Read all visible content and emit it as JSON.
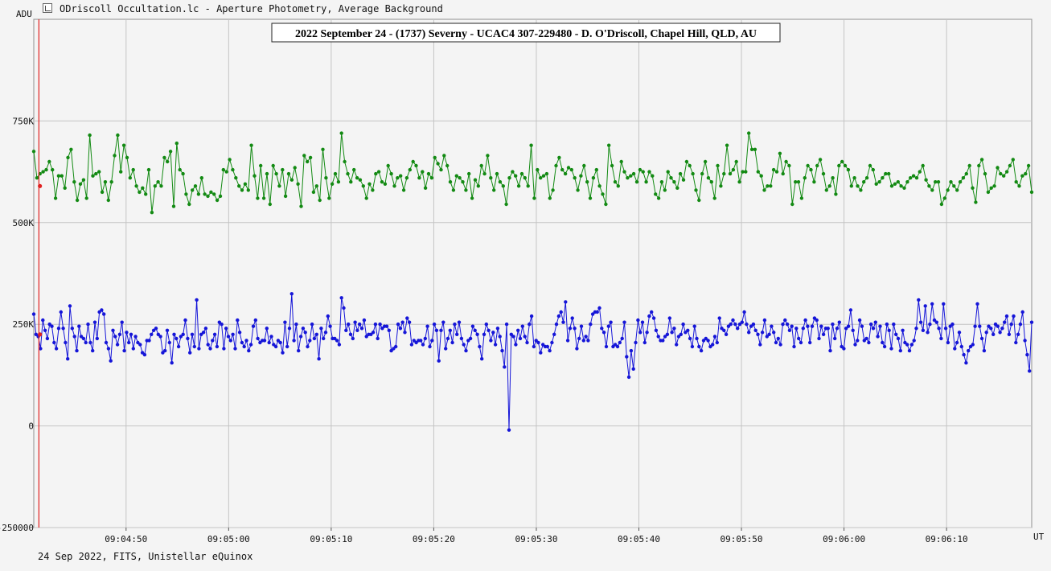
{
  "window": {
    "title": "ODriscoll Occultation.lc - Aperture Photometry, Average Background",
    "icon": "lightcurve-app-icon"
  },
  "footer": {
    "note": "24 Sep 2022, FITS, Unistellar eQuinox"
  },
  "chart_data": {
    "type": "line",
    "title": "2022 September 24 - (1737) Severny - UCAC4 307-229480 - D. O'Driscoll, Chapel Hill, QLD, AU",
    "ylabel": "ADU",
    "xlabel": "UT",
    "ylim": [
      -250000,
      1000000
    ],
    "xlim": [
      "09:04:41.0",
      "09:06:18.3"
    ],
    "y_ticks": [
      {
        "value": 750000,
        "label": "750K"
      },
      {
        "value": 500000,
        "label": "500K"
      },
      {
        "value": 250000,
        "label": "250K"
      },
      {
        "value": 0,
        "label": "0"
      },
      {
        "value": -250000,
        "label": "-250000"
      }
    ],
    "x_ticks": [
      "09:04:50",
      "09:05:00",
      "09:05:10",
      "09:05:20",
      "09:05:30",
      "09:05:40",
      "09:05:50",
      "09:06:00",
      "09:06:10"
    ],
    "grid": true,
    "cursor_time": "09:04:41.5",
    "cursor_color": "#e02020",
    "series": [
      {
        "color": "#138a13",
        "t_start": "09:04:41.0",
        "t_end": "09:06:18.3",
        "values": [
          675000,
          610000,
          620000,
          625000,
          630000,
          650000,
          630000,
          560000,
          615000,
          615000,
          585000,
          660000,
          680000,
          600000,
          555000,
          595000,
          605000,
          560000,
          715000,
          615000,
          620000,
          625000,
          575000,
          600000,
          555000,
          600000,
          665000,
          715000,
          625000,
          690000,
          660000,
          610000,
          630000,
          590000,
          575000,
          585000,
          570000,
          630000,
          525000,
          590000,
          600000,
          590000,
          660000,
          650000,
          675000,
          540000,
          695000,
          630000,
          620000,
          570000,
          545000,
          580000,
          590000,
          570000,
          610000,
          570000,
          565000,
          575000,
          570000,
          555000,
          565000,
          630000,
          625000,
          655000,
          630000,
          610000,
          590000,
          580000,
          595000,
          580000,
          690000,
          615000,
          560000,
          640000,
          560000,
          620000,
          545000,
          640000,
          620000,
          590000,
          630000,
          565000,
          620000,
          605000,
          635000,
          595000,
          540000,
          665000,
          650000,
          660000,
          575000,
          590000,
          555000,
          680000,
          610000,
          560000,
          595000,
          620000,
          600000,
          720000,
          650000,
          620000,
          600000,
          630000,
          610000,
          605000,
          590000,
          560000,
          595000,
          580000,
          620000,
          625000,
          600000,
          595000,
          640000,
          620000,
          590000,
          610000,
          615000,
          580000,
          610000,
          630000,
          650000,
          640000,
          610000,
          625000,
          585000,
          620000,
          610000,
          660000,
          645000,
          630000,
          665000,
          640000,
          600000,
          580000,
          615000,
          610000,
          600000,
          580000,
          620000,
          560000,
          605000,
          590000,
          640000,
          620000,
          665000,
          610000,
          580000,
          620000,
          600000,
          590000,
          545000,
          610000,
          625000,
          615000,
          590000,
          620000,
          610000,
          590000,
          690000,
          560000,
          630000,
          610000,
          615000,
          620000,
          560000,
          580000,
          640000,
          660000,
          630000,
          620000,
          635000,
          630000,
          610000,
          580000,
          615000,
          640000,
          600000,
          560000,
          610000,
          630000,
          590000,
          570000,
          545000,
          690000,
          640000,
          600000,
          590000,
          650000,
          625000,
          610000,
          615000,
          620000,
          600000,
          630000,
          625000,
          600000,
          625000,
          615000,
          570000,
          560000,
          600000,
          580000,
          625000,
          610000,
          600000,
          585000,
          620000,
          605000,
          650000,
          640000,
          620000,
          580000,
          555000,
          620000,
          650000,
          610000,
          600000,
          560000,
          640000,
          590000,
          620000,
          690000,
          620000,
          630000,
          650000,
          600000,
          625000,
          625000,
          720000,
          680000,
          680000,
          625000,
          615000,
          580000,
          590000,
          590000,
          630000,
          625000,
          670000,
          620000,
          650000,
          640000,
          545000,
          600000,
          600000,
          560000,
          610000,
          640000,
          630000,
          600000,
          640000,
          655000,
          620000,
          580000,
          590000,
          610000,
          570000,
          640000,
          650000,
          640000,
          630000,
          590000,
          610000,
          590000,
          580000,
          600000,
          610000,
          640000,
          630000,
          595000,
          600000,
          610000,
          620000,
          620000,
          590000,
          595000,
          600000,
          590000,
          585000,
          600000,
          610000,
          615000,
          610000,
          625000,
          640000,
          605000,
          590000,
          580000,
          600000,
          600000,
          545000,
          560000,
          580000,
          600000,
          590000,
          580000,
          600000,
          610000,
          620000,
          640000,
          585000,
          550000,
          640000,
          655000,
          620000,
          575000,
          585000,
          590000,
          635000,
          620000,
          615000,
          625000,
          640000,
          655000,
          600000,
          590000,
          615000,
          620000,
          640000,
          575000
        ]
      },
      {
        "color": "#1515d8",
        "t_start": "09:04:41.0",
        "t_end": "09:06:18.3",
        "values": [
          275000,
          225000,
          220000,
          190000,
          260000,
          235000,
          215000,
          250000,
          245000,
          205000,
          190000,
          240000,
          280000,
          240000,
          205000,
          165000,
          295000,
          240000,
          220000,
          185000,
          245000,
          220000,
          215000,
          205000,
          250000,
          205000,
          185000,
          255000,
          215000,
          280000,
          285000,
          275000,
          205000,
          190000,
          160000,
          235000,
          220000,
          200000,
          225000,
          255000,
          185000,
          230000,
          205000,
          225000,
          190000,
          220000,
          205000,
          200000,
          180000,
          175000,
          210000,
          210000,
          225000,
          235000,
          240000,
          225000,
          220000,
          180000,
          185000,
          235000,
          205000,
          155000,
          225000,
          215000,
          195000,
          220000,
          225000,
          260000,
          215000,
          180000,
          225000,
          195000,
          310000,
          190000,
          225000,
          230000,
          240000,
          200000,
          190000,
          210000,
          225000,
          195000,
          255000,
          250000,
          190000,
          240000,
          220000,
          210000,
          225000,
          190000,
          260000,
          230000,
          205000,
          195000,
          210000,
          185000,
          200000,
          245000,
          260000,
          215000,
          205000,
          210000,
          210000,
          240000,
          205000,
          220000,
          200000,
          195000,
          210000,
          205000,
          180000,
          255000,
          195000,
          240000,
          325000,
          210000,
          250000,
          185000,
          220000,
          240000,
          230000,
          195000,
          210000,
          250000,
          215000,
          225000,
          165000,
          240000,
          215000,
          230000,
          270000,
          245000,
          215000,
          215000,
          210000,
          200000,
          315000,
          290000,
          235000,
          250000,
          225000,
          215000,
          255000,
          235000,
          250000,
          240000,
          260000,
          220000,
          225000,
          225000,
          230000,
          250000,
          215000,
          250000,
          240000,
          245000,
          245000,
          235000,
          185000,
          190000,
          195000,
          250000,
          240000,
          255000,
          230000,
          265000,
          255000,
          200000,
          210000,
          205000,
          210000,
          210000,
          200000,
          215000,
          245000,
          195000,
          210000,
          250000,
          235000,
          160000,
          235000,
          255000,
          190000,
          215000,
          235000,
          205000,
          250000,
          225000,
          255000,
          215000,
          200000,
          185000,
          210000,
          215000,
          245000,
          235000,
          225000,
          195000,
          165000,
          225000,
          250000,
          235000,
          210000,
          230000,
          200000,
          240000,
          220000,
          185000,
          145000,
          250000,
          -10000,
          225000,
          220000,
          200000,
          235000,
          215000,
          245000,
          220000,
          205000,
          250000,
          270000,
          195000,
          210000,
          205000,
          180000,
          200000,
          195000,
          195000,
          185000,
          205000,
          225000,
          250000,
          270000,
          280000,
          255000,
          305000,
          210000,
          240000,
          265000,
          240000,
          190000,
          215000,
          245000,
          210000,
          220000,
          210000,
          250000,
          275000,
          280000,
          280000,
          290000,
          240000,
          230000,
          195000,
          245000,
          255000,
          195000,
          200000,
          195000,
          205000,
          215000,
          255000,
          170000,
          120000,
          185000,
          140000,
          205000,
          260000,
          230000,
          255000,
          205000,
          230000,
          270000,
          280000,
          265000,
          235000,
          220000,
          210000,
          210000,
          220000,
          225000,
          265000,
          230000,
          240000,
          200000,
          220000,
          225000,
          250000,
          230000,
          235000,
          215000,
          195000,
          245000,
          215000,
          195000,
          185000,
          210000,
          215000,
          210000,
          195000,
          200000,
          220000,
          205000,
          265000,
          240000,
          235000,
          225000,
          245000,
          250000,
          260000,
          250000,
          240000,
          250000,
          255000,
          280000,
          250000,
          230000,
          245000,
          250000,
          235000,
          225000,
          200000,
          230000,
          260000,
          220000,
          225000,
          245000,
          230000,
          205000,
          215000,
          200000,
          250000,
          260000,
          250000,
          235000,
          245000,
          195000,
          240000,
          215000,
          205000,
          240000,
          260000,
          245000,
          205000,
          245000,
          265000,
          260000,
          215000,
          245000,
          225000,
          240000,
          240000,
          185000,
          250000,
          215000,
          240000,
          255000,
          195000,
          190000,
          240000,
          245000,
          285000,
          235000,
          200000,
          210000,
          260000,
          245000,
          210000,
          215000,
          205000,
          250000,
          240000,
          255000,
          220000,
          245000,
          205000,
          195000,
          250000,
          235000,
          190000,
          250000,
          225000,
          215000,
          185000,
          235000,
          205000,
          200000,
          185000,
          200000,
          210000,
          240000,
          310000,
          255000,
          235000,
          295000,
          230000,
          250000,
          300000,
          260000,
          255000,
          240000,
          215000,
          300000,
          240000,
          205000,
          245000,
          250000,
          190000,
          205000,
          230000,
          195000,
          175000,
          155000,
          185000,
          195000,
          200000,
          245000,
          300000,
          245000,
          215000,
          185000,
          230000,
          245000,
          240000,
          225000,
          250000,
          245000,
          230000,
          240000,
          255000,
          270000,
          225000,
          250000,
          270000,
          205000,
          225000,
          250000,
          280000,
          210000,
          175000,
          135000,
          255000
        ]
      }
    ],
    "markers": [
      {
        "time": "09:04:41.6",
        "value": 590000,
        "color": "#e02020"
      },
      {
        "time": "09:04:41.6",
        "value": 225000,
        "color": "#e02020"
      }
    ]
  }
}
